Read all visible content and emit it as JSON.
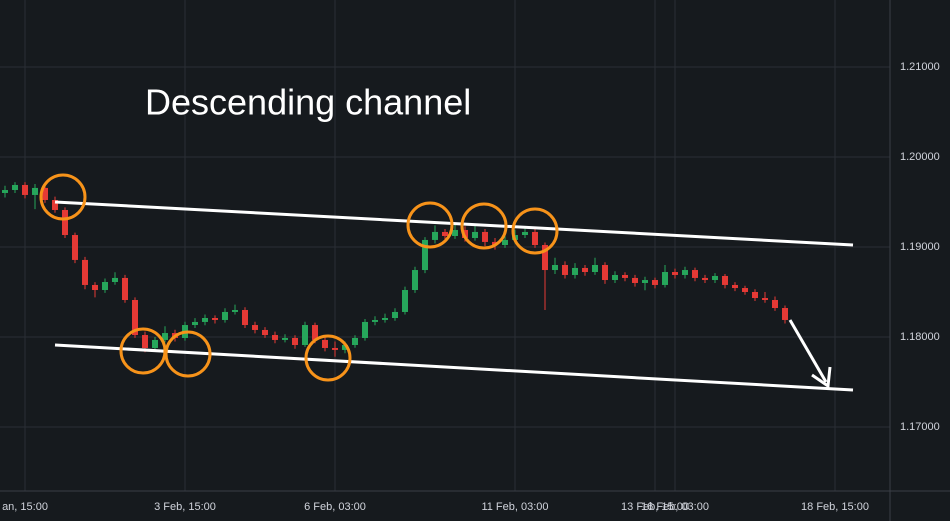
{
  "chart_data": {
    "type": "candlestick",
    "title": "Descending channel",
    "categories": [
      null,
      null,
      "an, 15:00",
      null,
      null,
      null,
      null,
      null,
      null,
      null,
      null,
      null,
      null,
      null,
      null,
      null,
      null,
      null,
      "3 Feb, 15:00",
      null,
      null,
      null,
      null,
      null,
      null,
      null,
      null,
      null,
      null,
      null,
      null,
      null,
      null,
      "6 Feb, 03:00",
      null,
      null,
      null,
      null,
      null,
      null,
      null,
      null,
      null,
      null,
      null,
      null,
      null,
      null,
      null,
      null,
      null,
      "11 Feb, 03:00",
      null,
      null,
      null,
      null,
      null,
      null,
      null,
      null,
      null,
      null,
      null,
      null,
      null,
      "13 Feb, 15:00",
      null,
      "16 Feb, 03:00",
      null,
      null,
      null,
      null,
      null,
      null,
      null,
      null,
      null,
      null,
      null,
      null,
      null,
      null,
      null,
      "18 Feb, 15:00"
    ],
    "open": [
      1.196,
      1.19633,
      1.19689,
      1.19578,
      1.19656,
      1.19522,
      1.19411,
      1.19133,
      1.18856,
      1.18578,
      1.18522,
      1.18611,
      1.18656,
      1.18411,
      1.18022,
      1.17878,
      1.17967,
      1.18044,
      1.17989,
      1.18133,
      1.18167,
      1.18211,
      1.18189,
      1.18278,
      1.183,
      1.18133,
      1.18078,
      1.18022,
      1.17967,
      1.17989,
      1.17911,
      1.18133,
      1.17967,
      1.17878,
      1.17856,
      1.17911,
      1.17989,
      1.18167,
      1.18189,
      1.18211,
      1.18278,
      1.18522,
      1.18744,
      1.19078,
      1.19167,
      1.19122,
      1.19189,
      1.191,
      1.19167,
      1.19056,
      1.19022,
      1.19078,
      1.19133,
      1.19167,
      1.19022,
      1.18744,
      1.188,
      1.18689,
      1.18767,
      1.18722,
      1.188,
      1.18633,
      1.18689,
      1.18656,
      1.186,
      1.18633,
      1.18578,
      1.18722,
      1.18689,
      1.18744,
      1.18656,
      1.18633,
      1.18678,
      1.18578,
      1.18544,
      1.185,
      1.18433,
      1.18411,
      1.18322,
      null,
      null,
      null,
      null,
      null
    ],
    "high": [
      1.1968,
      1.1972,
      1.1972,
      1.197,
      1.1969,
      1.1956,
      1.1944,
      1.1916,
      1.1889,
      1.1861,
      1.1865,
      1.1872,
      1.1869,
      1.1844,
      1.1806,
      1.18,
      1.1812,
      1.1808,
      1.1817,
      1.1821,
      1.1825,
      1.1824,
      1.1832,
      1.1836,
      1.1833,
      1.1817,
      1.1811,
      1.1806,
      1.1803,
      1.1802,
      1.1817,
      1.1816,
      1.18,
      1.1795,
      1.1795,
      1.1802,
      1.182,
      1.1823,
      1.1826,
      1.1832,
      1.1856,
      1.1878,
      1.1911,
      1.1924,
      1.192,
      1.1925,
      1.1923,
      1.1924,
      1.192,
      1.191,
      1.1912,
      1.1919,
      1.1923,
      1.192,
      1.1905,
      1.1888,
      1.1884,
      1.1882,
      1.188,
      1.1888,
      1.1883,
      1.1873,
      1.1872,
      1.1869,
      1.1867,
      1.1866,
      1.188,
      1.1876,
      1.1878,
      1.1877,
      1.1869,
      1.1871,
      1.187,
      1.1861,
      1.1857,
      1.1853,
      1.185,
      1.1845,
      1.1835,
      null,
      null,
      null,
      null,
      null
    ],
    "low": [
      1.1955,
      1.196,
      1.1954,
      1.1942,
      1.1949,
      1.1938,
      1.191,
      1.1882,
      1.1853,
      1.1844,
      1.1849,
      1.1858,
      1.1838,
      1.1799,
      1.1783,
      1.1784,
      1.1794,
      1.1795,
      1.1796,
      1.181,
      1.1813,
      1.1815,
      1.1816,
      1.1825,
      1.181,
      1.1804,
      1.1799,
      1.1793,
      1.1794,
      1.1787,
      1.1789,
      1.1793,
      1.1784,
      1.1778,
      1.1782,
      1.1788,
      1.1796,
      1.1813,
      1.1816,
      1.1818,
      1.1825,
      1.1849,
      1.1871,
      1.1904,
      1.1908,
      1.1909,
      1.1906,
      1.1907,
      1.1901,
      1.1897,
      1.1899,
      1.1904,
      1.191,
      1.1899,
      1.183,
      1.187,
      1.1865,
      1.1865,
      1.1868,
      1.1869,
      1.1859,
      1.186,
      1.1862,
      1.1856,
      1.1852,
      1.1854,
      1.1855,
      1.1865,
      1.1865,
      1.1862,
      1.186,
      1.186,
      1.1854,
      1.1851,
      1.1847,
      1.184,
      1.1838,
      1.1829,
      1.1815,
      null,
      null,
      null,
      null,
      null
    ],
    "close": [
      1.19633,
      1.19689,
      1.19578,
      1.19656,
      1.19522,
      1.19411,
      1.19133,
      1.18856,
      1.18578,
      1.18522,
      1.18611,
      1.18656,
      1.18411,
      1.18022,
      1.17878,
      1.17967,
      1.18044,
      1.17989,
      1.18133,
      1.18167,
      1.18211,
      1.18189,
      1.18278,
      1.183,
      1.18133,
      1.18078,
      1.18022,
      1.17967,
      1.17989,
      1.17911,
      1.18133,
      1.17967,
      1.17878,
      1.17856,
      1.17911,
      1.17989,
      1.18167,
      1.18189,
      1.18211,
      1.18278,
      1.18522,
      1.18744,
      1.19078,
      1.19167,
      1.19122,
      1.19189,
      1.191,
      1.19167,
      1.19056,
      1.19022,
      1.19078,
      1.19133,
      1.19167,
      1.19022,
      1.18744,
      1.188,
      1.18689,
      1.18767,
      1.18722,
      1.188,
      1.18633,
      1.18689,
      1.18656,
      1.186,
      1.18633,
      1.18578,
      1.18722,
      1.18689,
      1.18744,
      1.18656,
      1.18633,
      1.18678,
      1.18578,
      1.18544,
      1.185,
      1.18433,
      1.18411,
      1.18322,
      1.18189,
      null,
      null,
      null,
      null,
      null
    ],
    "up_color": "#26a65b",
    "down_color": "#e53935",
    "ylim": [
      1.16289,
      1.21744
    ],
    "yticks": [
      {
        "value": 1.21,
        "label": "1.21000"
      },
      {
        "value": 1.2,
        "label": "1.20000"
      },
      {
        "value": 1.19,
        "label": "1.19000"
      },
      {
        "value": 1.18,
        "label": "1.18000"
      },
      {
        "value": 1.17,
        "label": "1.17000"
      }
    ],
    "grid": true
  }
}
